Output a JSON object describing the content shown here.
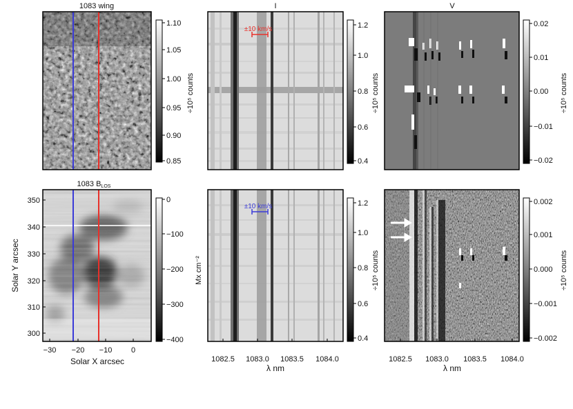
{
  "figure": {
    "titles": {
      "wing": "1083 wing",
      "I": "I",
      "V": "V",
      "blos_main": "1083 B",
      "blos_sub": "LOS"
    },
    "colorbars": {
      "wing": {
        "label": "÷10⁵ counts",
        "ticks": [
          "1.10",
          "1.05",
          "1.00",
          "0.95",
          "0.90",
          "0.85"
        ]
      },
      "I_top": {
        "label": "÷10⁵ counts",
        "ticks": [
          "1.2",
          "1.0",
          "0.8",
          "0.6",
          "0.4"
        ]
      },
      "V_top": {
        "label": "÷10⁵ counts",
        "ticks": [
          "0.02",
          "0.01",
          "0.00",
          "−0.01",
          "−0.02"
        ]
      },
      "blos": {
        "label": "Mx cm⁻²",
        "ticks": [
          "0",
          "−100",
          "−200",
          "−300",
          "−400"
        ]
      },
      "I_bot": {
        "label": "÷10⁵ counts",
        "ticks": [
          "1.2",
          "1.0",
          "0.8",
          "0.6",
          "0.4"
        ]
      },
      "V_bot": {
        "label": "÷10⁵ counts",
        "ticks": [
          "0.002",
          "0.001",
          "0.000",
          "−0.001",
          "−0.002"
        ]
      }
    },
    "axes": {
      "solar_x_label": "Solar X arcsec",
      "solar_y_label": "Solar Y arcsec",
      "solar_x_ticks": [
        "−30",
        "−20",
        "−10",
        "0"
      ],
      "solar_y_ticks": [
        "350",
        "340",
        "330",
        "320",
        "310",
        "300"
      ],
      "lambda_label": "λ nm",
      "lambda_ticks_I": [
        "1082.5",
        "1083.0",
        "1083.5",
        "1084.0"
      ],
      "lambda_ticks_V": [
        "1082.5",
        "1083.0",
        "1083.5",
        "1084.0"
      ]
    },
    "annotations": {
      "velocity_red": "±10 km/s",
      "velocity_blue": "±10 km/s"
    },
    "colors": {
      "red_slit": "#e8302a",
      "blue_slit": "#3a3ad8",
      "frame": "#000000",
      "arrow": "#ffffff"
    }
  }
}
